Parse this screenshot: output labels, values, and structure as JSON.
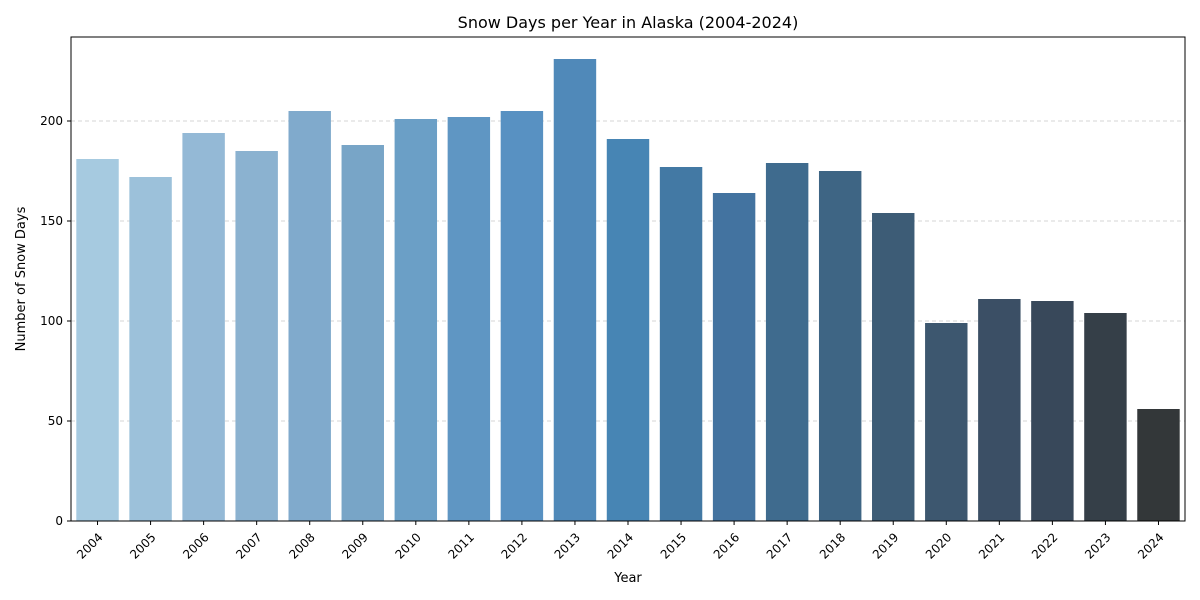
{
  "chart_data": {
    "type": "bar",
    "title": "Snow Days per Year in Alaska (2004-2024)",
    "xlabel": "Year",
    "ylabel": "Number of Snow Days",
    "categories": [
      "2004",
      "2005",
      "2006",
      "2007",
      "2008",
      "2009",
      "2010",
      "2011",
      "2012",
      "2013",
      "2014",
      "2015",
      "2016",
      "2017",
      "2018",
      "2019",
      "2020",
      "2021",
      "2022",
      "2023",
      "2024"
    ],
    "values": [
      181,
      172,
      194,
      185,
      205,
      188,
      201,
      202,
      205,
      231,
      191,
      177,
      164,
      179,
      175,
      154,
      99,
      111,
      110,
      104,
      56
    ],
    "colors": [
      "#a6cae0",
      "#9cc1da",
      "#94b9d6",
      "#8bb2d0",
      "#80aacc",
      "#78a5c7",
      "#6b9fc6",
      "#5f96c3",
      "#5891c2",
      "#5089b9",
      "#4785b4",
      "#4379a4",
      "#4373a0",
      "#3f6b8e",
      "#3e6584",
      "#3d5c76",
      "#3d576f",
      "#3b4f65",
      "#38485a",
      "#353f48",
      "#333739"
    ],
    "ylim": [
      0,
      242
    ],
    "yticks": [
      0,
      50,
      100,
      150,
      200
    ],
    "grid": "y-dashed",
    "legend": "none"
  }
}
